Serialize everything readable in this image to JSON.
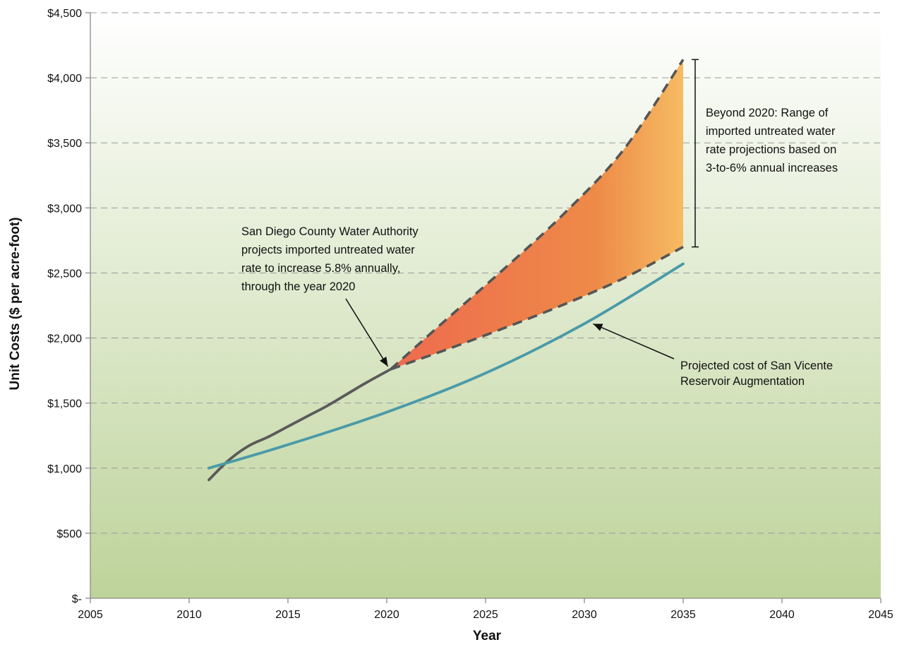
{
  "chart_data": {
    "type": "line",
    "xlabel": "Year",
    "ylabel": "Unit Costs ($ per acre-foot)",
    "xlim": [
      2005,
      2045
    ],
    "ylim": [
      0,
      4500
    ],
    "x_ticks": [
      2005,
      2010,
      2015,
      2020,
      2025,
      2030,
      2035,
      2040,
      2045
    ],
    "x_tick_labels": [
      "2005",
      "2010",
      "2015",
      "2020",
      "2025",
      "2030",
      "2035",
      "2040",
      "2045"
    ],
    "y_ticks": [
      0,
      500,
      1000,
      1500,
      2000,
      2500,
      3000,
      3500,
      4000,
      4500
    ],
    "y_tick_labels": [
      "$-",
      "$500",
      "$1,000",
      "$1,500",
      "$2,000",
      "$2,500",
      "$3,000",
      "$3,500",
      "$4,000",
      "$4,500"
    ],
    "grid": "horizontal-dashed",
    "background": "gradient white to green",
    "series": [
      {
        "color": "#5a5a5a",
        "style": "solid",
        "x": [
          2011,
          2012,
          2013,
          2014,
          2015,
          2016,
          2017,
          2018,
          2019,
          2020.2
        ],
        "values": [
          910,
          1060,
          1170,
          1240,
          1320,
          1400,
          1480,
          1570,
          1660,
          1760
        ]
      },
      {
        "color": "#4a9aa8",
        "style": "solid",
        "x": [
          2011,
          2015,
          2020,
          2025,
          2030,
          2035
        ],
        "values": [
          1000,
          1180,
          1430,
          1730,
          2110,
          2570
        ]
      },
      {
        "color": "#555555",
        "style": "dashed",
        "x": [
          2020.2,
          2023,
          2026,
          2029,
          2032,
          2035
        ],
        "values": [
          1760,
          2140,
          2540,
          2960,
          3450,
          4140
        ]
      },
      {
        "color": "#555555",
        "style": "dashed",
        "x": [
          2020.2,
          2023,
          2026,
          2029,
          2032,
          2035
        ],
        "values": [
          1760,
          1910,
          2080,
          2260,
          2460,
          2700
        ]
      }
    ],
    "range_band": {
      "x_from": 2020.2,
      "x_to": 2035,
      "color_start": "#ee6a4e",
      "color_mid": "#ee8a48",
      "color_end": "#f6bb62"
    },
    "annotations": [
      {
        "lines": [
          "San Diego County Water Authority",
          "projects imported untreated water",
          "rate to increase 5.8% annually,",
          "through the year 2020"
        ],
        "points_to": [
          2020.2,
          1760
        ]
      },
      {
        "lines": [
          "Beyond 2020: Range of",
          "imported untreated water",
          "rate projections based on",
          "3-to-6% annual increases"
        ],
        "bracket": [
          2700,
          4140
        ]
      },
      {
        "lines": [
          "Projected cost of San Vicente",
          "Reservoir Augmentation"
        ],
        "points_to": [
          2030.3,
          2120
        ]
      }
    ]
  }
}
